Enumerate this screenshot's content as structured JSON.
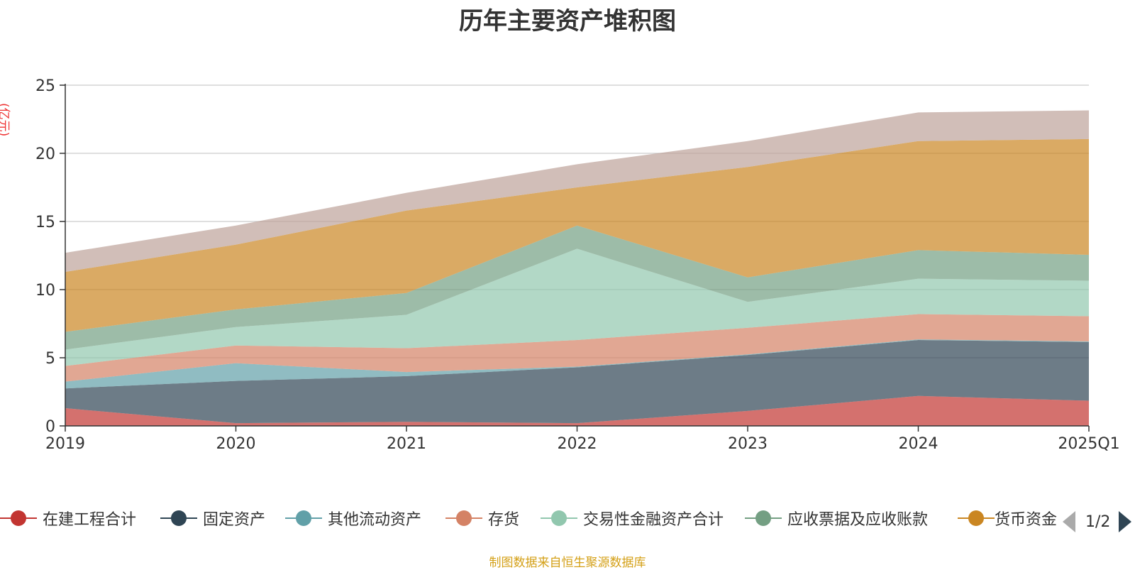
{
  "title": "历年主要资产堆积图",
  "unit": "(亿元)",
  "source": "制图数据来自恒生聚源数据库",
  "legend_page": "1/2",
  "chart_data": {
    "type": "area",
    "stacked": true,
    "title": "历年主要资产堆积图",
    "ylabel": "(亿元)",
    "ylim": [
      0,
      25
    ],
    "yticks": [
      0,
      5,
      10,
      15,
      20,
      25
    ],
    "grid": true,
    "legend_position": "bottom",
    "categories": [
      "2019",
      "2020",
      "2021",
      "2022",
      "2023",
      "2024",
      "2025Q1"
    ],
    "series": [
      {
        "name": "在建工程合计",
        "color": "#c23531",
        "values": [
          1.3,
          0.2,
          0.3,
          0.2,
          1.1,
          2.2,
          1.85
        ]
      },
      {
        "name": "固定资产",
        "color": "#2f4554",
        "values": [
          1.45,
          3.1,
          3.35,
          4.1,
          4.1,
          4.1,
          4.3
        ]
      },
      {
        "name": "其他流动资产",
        "color": "#61a0a8",
        "values": [
          0.5,
          1.3,
          0.3,
          0.05,
          0.05,
          0.05,
          0.05
        ]
      },
      {
        "name": "存货",
        "color": "#d48265",
        "values": [
          1.15,
          1.3,
          1.75,
          1.95,
          1.95,
          1.85,
          1.85
        ]
      },
      {
        "name": "交易性金融资产合计",
        "color": "#91c7ae",
        "values": [
          1.2,
          1.35,
          2.45,
          6.7,
          1.9,
          2.6,
          2.6
        ]
      },
      {
        "name": "应收票据及应收账款",
        "color": "#749f83",
        "values": [
          1.3,
          1.3,
          1.6,
          1.7,
          1.8,
          2.1,
          1.9
        ]
      },
      {
        "name": "货币资金",
        "color": "#ca8622",
        "values": [
          4.4,
          4.75,
          6.05,
          2.8,
          8.1,
          8.0,
          8.5
        ]
      },
      {
        "name": "",
        "color": "#bda29a",
        "values": [
          1.4,
          1.4,
          1.3,
          1.7,
          1.9,
          2.1,
          2.1
        ]
      }
    ]
  }
}
